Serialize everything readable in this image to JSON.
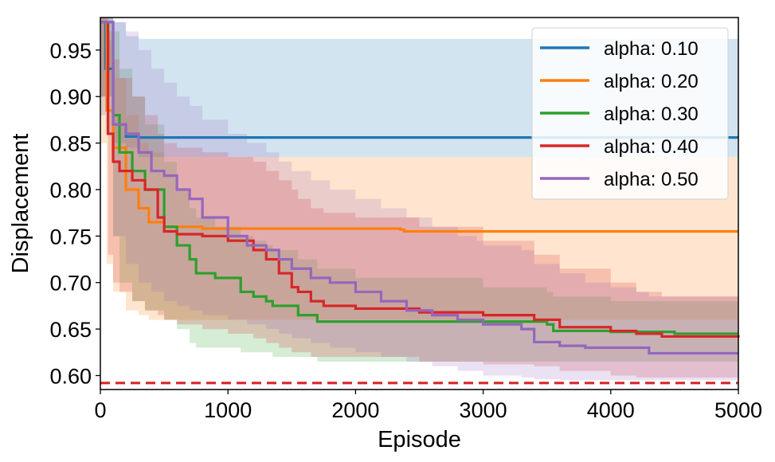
{
  "chart_data": {
    "type": "line",
    "xlabel": "Episode",
    "ylabel": "Displacement",
    "xlim": [
      0,
      5000
    ],
    "ylim": [
      0.585,
      0.985
    ],
    "xticks": [
      "0",
      "1000",
      "2000",
      "3000",
      "4000",
      "5000"
    ],
    "yticks": [
      "0.60",
      "0.65",
      "0.70",
      "0.75",
      "0.80",
      "0.85",
      "0.90",
      "0.95"
    ],
    "legend_position": "top-right",
    "grid": false,
    "reference_line": {
      "y": 0.592,
      "color": "#d62728",
      "style": "dashed"
    },
    "series": [
      {
        "name": "alpha: 0.10",
        "color": "#1f77b4",
        "x": [
          0,
          40,
          100,
          200,
          300,
          5000
        ],
        "y": [
          0.98,
          0.93,
          0.87,
          0.857,
          0.856,
          0.856
        ],
        "lower": [
          0.88,
          0.86,
          0.85,
          0.845,
          0.835,
          0.835
        ],
        "upper": [
          0.985,
          0.985,
          0.98,
          0.965,
          0.962,
          0.962
        ]
      },
      {
        "name": "alpha: 0.20",
        "color": "#ff7f0e",
        "x": [
          0,
          50,
          100,
          200,
          300,
          380,
          500,
          800,
          2350,
          2380,
          5000
        ],
        "y": [
          0.98,
          0.885,
          0.845,
          0.8,
          0.78,
          0.765,
          0.76,
          0.758,
          0.757,
          0.755,
          0.755
        ],
        "lower": [
          0.85,
          0.72,
          0.69,
          0.67,
          0.665,
          0.66,
          0.66,
          0.66,
          0.66,
          0.66,
          0.66
        ],
        "upper": [
          0.985,
          0.96,
          0.92,
          0.88,
          0.85,
          0.84,
          0.835,
          0.835,
          0.835,
          0.835,
          0.835
        ]
      },
      {
        "name": "alpha: 0.30",
        "color": "#2ca02c",
        "x": [
          0,
          100,
          150,
          250,
          350,
          500,
          600,
          700,
          750,
          900,
          1100,
          1200,
          1300,
          1350,
          1550,
          1700,
          2000,
          3000,
          3500,
          3550,
          4000,
          4500,
          5000
        ],
        "y": [
          0.98,
          0.88,
          0.84,
          0.82,
          0.8,
          0.76,
          0.74,
          0.725,
          0.71,
          0.705,
          0.69,
          0.685,
          0.68,
          0.675,
          0.665,
          0.658,
          0.658,
          0.658,
          0.655,
          0.648,
          0.647,
          0.645,
          0.645
        ],
        "lower": [
          0.9,
          0.75,
          0.7,
          0.68,
          0.67,
          0.66,
          0.65,
          0.635,
          0.63,
          0.63,
          0.625,
          0.625,
          0.625,
          0.62,
          0.62,
          0.615,
          0.615,
          0.615,
          0.615,
          0.615,
          0.615,
          0.615,
          0.615
        ],
        "upper": [
          0.985,
          0.97,
          0.93,
          0.9,
          0.87,
          0.83,
          0.8,
          0.78,
          0.77,
          0.76,
          0.75,
          0.745,
          0.74,
          0.735,
          0.725,
          0.715,
          0.705,
          0.695,
          0.69,
          0.685,
          0.68,
          0.68,
          0.675
        ]
      },
      {
        "name": "alpha: 0.40",
        "color": "#d62728",
        "x": [
          0,
          60,
          100,
          150,
          250,
          350,
          450,
          500,
          600,
          800,
          1000,
          1200,
          1300,
          1400,
          1500,
          1550,
          1650,
          1750,
          2000,
          2500,
          3000,
          3400,
          3600,
          4000,
          4200,
          4400,
          5000
        ],
        "y": [
          0.98,
          0.86,
          0.83,
          0.82,
          0.81,
          0.8,
          0.77,
          0.755,
          0.752,
          0.75,
          0.745,
          0.735,
          0.725,
          0.71,
          0.695,
          0.69,
          0.68,
          0.675,
          0.672,
          0.668,
          0.665,
          0.66,
          0.652,
          0.648,
          0.645,
          0.642,
          0.641
        ],
        "lower": [
          0.9,
          0.73,
          0.7,
          0.69,
          0.68,
          0.67,
          0.665,
          0.66,
          0.655,
          0.65,
          0.645,
          0.64,
          0.635,
          0.63,
          0.625,
          0.625,
          0.62,
          0.62,
          0.62,
          0.615,
          0.612,
          0.61,
          0.605,
          0.6,
          0.598,
          0.598,
          0.598
        ],
        "upper": [
          0.985,
          0.97,
          0.94,
          0.92,
          0.9,
          0.88,
          0.86,
          0.85,
          0.845,
          0.84,
          0.835,
          0.83,
          0.82,
          0.81,
          0.8,
          0.79,
          0.78,
          0.775,
          0.77,
          0.76,
          0.745,
          0.73,
          0.715,
          0.7,
          0.69,
          0.685,
          0.68
        ]
      },
      {
        "name": "alpha: 0.50",
        "color": "#9467bd",
        "x": [
          0,
          100,
          200,
          300,
          400,
          500,
          600,
          700,
          800,
          1000,
          1150,
          1300,
          1400,
          1500,
          1650,
          1800,
          2000,
          2200,
          2400,
          2600,
          2800,
          2950,
          3000,
          3300,
          3400,
          3600,
          3800,
          4000,
          4200,
          4300,
          5000
        ],
        "y": [
          0.98,
          0.87,
          0.86,
          0.84,
          0.82,
          0.815,
          0.8,
          0.79,
          0.77,
          0.75,
          0.74,
          0.735,
          0.725,
          0.715,
          0.705,
          0.7,
          0.69,
          0.68,
          0.67,
          0.665,
          0.66,
          0.66,
          0.655,
          0.65,
          0.636,
          0.632,
          0.63,
          0.63,
          0.63,
          0.624,
          0.624
        ],
        "lower": [
          0.9,
          0.75,
          0.72,
          0.7,
          0.69,
          0.68,
          0.675,
          0.67,
          0.665,
          0.66,
          0.655,
          0.65,
          0.645,
          0.64,
          0.635,
          0.63,
          0.625,
          0.62,
          0.615,
          0.61,
          0.605,
          0.605,
          0.6,
          0.598,
          0.596,
          0.595,
          0.595,
          0.595,
          0.595,
          0.595,
          0.595
        ],
        "upper": [
          0.985,
          0.98,
          0.97,
          0.95,
          0.93,
          0.915,
          0.9,
          0.89,
          0.875,
          0.86,
          0.85,
          0.84,
          0.83,
          0.82,
          0.81,
          0.8,
          0.79,
          0.78,
          0.77,
          0.76,
          0.75,
          0.745,
          0.74,
          0.735,
          0.72,
          0.71,
          0.7,
          0.695,
          0.69,
          0.685,
          0.68
        ]
      }
    ]
  }
}
